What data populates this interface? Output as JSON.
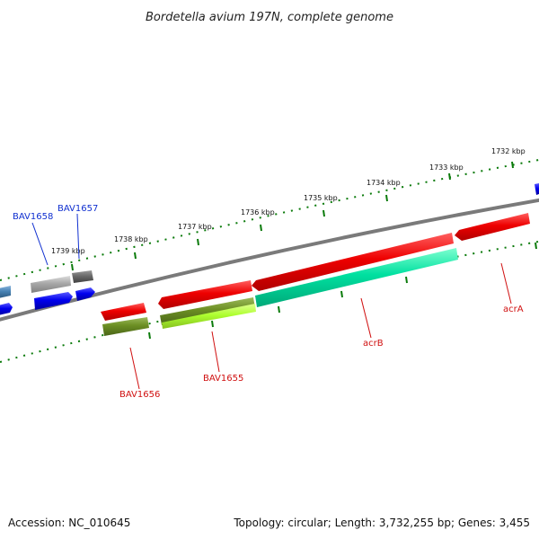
{
  "title": "Bordetella avium 197N, complete genome",
  "ticks": [
    {
      "label": "1732 kbp"
    },
    {
      "label": "1733 kbp"
    },
    {
      "label": "1734 kbp"
    },
    {
      "label": "1735 kbp"
    },
    {
      "label": "1736 kbp"
    },
    {
      "label": "1737 kbp"
    },
    {
      "label": "1738 kbp"
    },
    {
      "label": "1739 kbp"
    }
  ],
  "genes": {
    "bav1658": "BAV1658",
    "bav1657": "BAV1657",
    "bav1656": "BAV1656",
    "bav1655": "BAV1655",
    "acrB": "acrB",
    "acrA": "acrA"
  },
  "colors": {
    "backbone": "#7a7a7a",
    "tick": "#0a7a0a",
    "blue": "#0000ee",
    "red": "#ee0000",
    "teal": "#00e0a0",
    "olive": "#6b8e23",
    "lime": "#adff2f",
    "grey": "#a8a8a8",
    "darkgrey": "#6a6a6a",
    "steel": "#4682b4"
  },
  "footer": {
    "accession": "Accession: NC_010645",
    "info": "Topology: circular; Length: 3,732,255 bp; Genes: 3,455"
  }
}
